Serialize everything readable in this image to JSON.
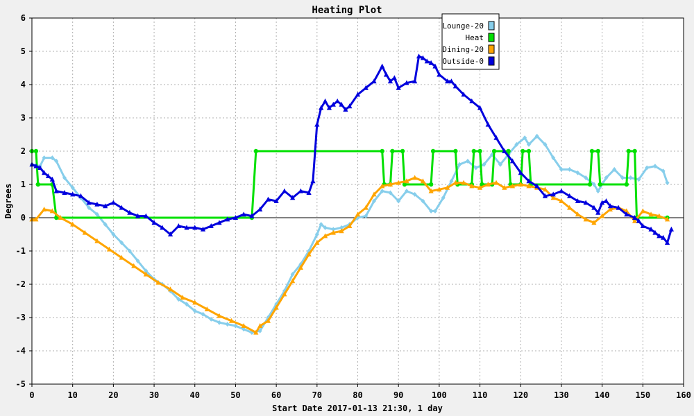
{
  "chart_data": {
    "type": "line",
    "title": "Heating Plot",
    "xlabel": "Start Date 2017-01-13 21:30, 1 day",
    "ylabel": "Degrees",
    "xlim": [
      0,
      160
    ],
    "ylim": [
      -5,
      6
    ],
    "x_ticks": [
      0,
      10,
      20,
      30,
      40,
      50,
      60,
      70,
      80,
      90,
      100,
      110,
      120,
      130,
      140,
      150,
      160
    ],
    "y_ticks": [
      -5,
      -4,
      -3,
      -2,
      -1,
      0,
      1,
      2,
      3,
      4,
      5,
      6
    ],
    "grid": true,
    "legend_position": "top-right",
    "series": [
      {
        "name": "Lounge-20",
        "color": "#87ceeb",
        "marker": "diamond",
        "points": [
          [
            0,
            1.6
          ],
          [
            2,
            1.55
          ],
          [
            3,
            1.8
          ],
          [
            5,
            1.8
          ],
          [
            6,
            1.7
          ],
          [
            8,
            1.2
          ],
          [
            10,
            0.9
          ],
          [
            12,
            0.6
          ],
          [
            14,
            0.3
          ],
          [
            16,
            0.1
          ],
          [
            18,
            -0.2
          ],
          [
            20,
            -0.5
          ],
          [
            22,
            -0.75
          ],
          [
            24,
            -1.0
          ],
          [
            26,
            -1.3
          ],
          [
            28,
            -1.6
          ],
          [
            30,
            -1.85
          ],
          [
            32,
            -2.0
          ],
          [
            34,
            -2.2
          ],
          [
            36,
            -2.45
          ],
          [
            38,
            -2.6
          ],
          [
            40,
            -2.8
          ],
          [
            42,
            -2.9
          ],
          [
            44,
            -3.05
          ],
          [
            46,
            -3.15
          ],
          [
            48,
            -3.2
          ],
          [
            50,
            -3.25
          ],
          [
            52,
            -3.35
          ],
          [
            54,
            -3.45
          ],
          [
            56,
            -3.4
          ],
          [
            58,
            -3.0
          ],
          [
            60,
            -2.6
          ],
          [
            62,
            -2.2
          ],
          [
            64,
            -1.7
          ],
          [
            66,
            -1.4
          ],
          [
            68,
            -1.0
          ],
          [
            70,
            -0.5
          ],
          [
            71,
            -0.2
          ],
          [
            72,
            -0.3
          ],
          [
            74,
            -0.35
          ],
          [
            76,
            -0.3
          ],
          [
            78,
            -0.2
          ],
          [
            80,
            0.0
          ],
          [
            82,
            0.05
          ],
          [
            84,
            0.5
          ],
          [
            86,
            0.8
          ],
          [
            88,
            0.75
          ],
          [
            90,
            0.5
          ],
          [
            92,
            0.8
          ],
          [
            94,
            0.7
          ],
          [
            96,
            0.5
          ],
          [
            98,
            0.2
          ],
          [
            99,
            0.2
          ],
          [
            101,
            0.6
          ],
          [
            103,
            1.1
          ],
          [
            105,
            1.6
          ],
          [
            107,
            1.7
          ],
          [
            109,
            1.5
          ],
          [
            111,
            1.6
          ],
          [
            113,
            1.9
          ],
          [
            115,
            1.6
          ],
          [
            117,
            1.9
          ],
          [
            119,
            2.2
          ],
          [
            121,
            2.4
          ],
          [
            122,
            2.2
          ],
          [
            124,
            2.45
          ],
          [
            126,
            2.2
          ],
          [
            128,
            1.8
          ],
          [
            130,
            1.45
          ],
          [
            132,
            1.45
          ],
          [
            134,
            1.35
          ],
          [
            136,
            1.2
          ],
          [
            138,
            1.0
          ],
          [
            139,
            0.8
          ],
          [
            141,
            1.2
          ],
          [
            143,
            1.45
          ],
          [
            145,
            1.2
          ],
          [
            147,
            1.2
          ],
          [
            149,
            1.15
          ],
          [
            151,
            1.5
          ],
          [
            153,
            1.55
          ],
          [
            155,
            1.4
          ],
          [
            156,
            1.05
          ]
        ]
      },
      {
        "name": "Heat",
        "color": "#00e000",
        "marker": "circle",
        "points": [
          [
            0,
            2
          ],
          [
            1,
            2
          ],
          [
            1.5,
            1
          ],
          [
            5,
            1
          ],
          [
            6,
            0
          ],
          [
            54,
            0
          ],
          [
            55,
            2
          ],
          [
            86,
            2
          ],
          [
            86.5,
            1
          ],
          [
            88,
            1
          ],
          [
            88.5,
            2
          ],
          [
            91,
            2
          ],
          [
            91.5,
            1
          ],
          [
            98,
            1
          ],
          [
            98.5,
            2
          ],
          [
            104,
            2
          ],
          [
            104.5,
            1
          ],
          [
            108,
            1
          ],
          [
            108.5,
            2
          ],
          [
            110,
            2
          ],
          [
            110.5,
            1
          ],
          [
            113,
            1
          ],
          [
            113.5,
            2
          ],
          [
            117,
            2
          ],
          [
            117.5,
            1
          ],
          [
            120,
            1
          ],
          [
            120.5,
            2
          ],
          [
            122,
            2
          ],
          [
            122.5,
            1
          ],
          [
            137,
            1
          ],
          [
            137.5,
            2
          ],
          [
            139,
            2
          ],
          [
            139.5,
            1
          ],
          [
            146,
            1
          ],
          [
            146.5,
            2
          ],
          [
            148,
            2
          ],
          [
            148.5,
            0
          ],
          [
            156,
            0
          ]
        ]
      },
      {
        "name": "Dining-20",
        "color": "#ffa500",
        "marker": "triangle",
        "points": [
          [
            0,
            -0.05
          ],
          [
            1,
            -0.05
          ],
          [
            3,
            0.25
          ],
          [
            5,
            0.2
          ],
          [
            7,
            0.0
          ],
          [
            10,
            -0.2
          ],
          [
            13,
            -0.45
          ],
          [
            16,
            -0.7
          ],
          [
            19,
            -0.95
          ],
          [
            22,
            -1.2
          ],
          [
            25,
            -1.45
          ],
          [
            28,
            -1.7
          ],
          [
            31,
            -1.95
          ],
          [
            34,
            -2.15
          ],
          [
            37,
            -2.4
          ],
          [
            40,
            -2.55
          ],
          [
            43,
            -2.75
          ],
          [
            46,
            -2.95
          ],
          [
            49,
            -3.1
          ],
          [
            52,
            -3.25
          ],
          [
            55,
            -3.45
          ],
          [
            56,
            -3.25
          ],
          [
            58,
            -3.1
          ],
          [
            60,
            -2.7
          ],
          [
            62,
            -2.3
          ],
          [
            64,
            -1.9
          ],
          [
            66,
            -1.5
          ],
          [
            68,
            -1.1
          ],
          [
            70,
            -0.75
          ],
          [
            72,
            -0.55
          ],
          [
            74,
            -0.45
          ],
          [
            76,
            -0.4
          ],
          [
            78,
            -0.25
          ],
          [
            80,
            0.1
          ],
          [
            82,
            0.3
          ],
          [
            84,
            0.7
          ],
          [
            86,
            0.95
          ],
          [
            88,
            1.0
          ],
          [
            90,
            1.05
          ],
          [
            92,
            1.1
          ],
          [
            94,
            1.2
          ],
          [
            96,
            1.1
          ],
          [
            98,
            0.8
          ],
          [
            100,
            0.85
          ],
          [
            102,
            0.9
          ],
          [
            104,
            1.05
          ],
          [
            106,
            1.05
          ],
          [
            108,
            0.95
          ],
          [
            110,
            0.9
          ],
          [
            112,
            1.0
          ],
          [
            114,
            1.05
          ],
          [
            116,
            0.9
          ],
          [
            118,
            0.95
          ],
          [
            120,
            1.0
          ],
          [
            122,
            0.95
          ],
          [
            124,
            0.9
          ],
          [
            126,
            0.85
          ],
          [
            128,
            0.6
          ],
          [
            130,
            0.5
          ],
          [
            132,
            0.3
          ],
          [
            134,
            0.1
          ],
          [
            136,
            -0.05
          ],
          [
            138,
            -0.15
          ],
          [
            140,
            0.05
          ],
          [
            142,
            0.25
          ],
          [
            144,
            0.3
          ],
          [
            146,
            0.2
          ],
          [
            148,
            -0.1
          ],
          [
            150,
            0.2
          ],
          [
            152,
            0.1
          ],
          [
            154,
            0.05
          ],
          [
            156,
            -0.05
          ]
        ]
      },
      {
        "name": "Outside-0",
        "color": "#0000dd",
        "marker": "triangle",
        "points": [
          [
            0,
            1.6
          ],
          [
            1,
            1.55
          ],
          [
            2,
            1.5
          ],
          [
            3,
            1.35
          ],
          [
            4,
            1.25
          ],
          [
            5,
            1.15
          ],
          [
            6,
            0.8
          ],
          [
            8,
            0.75
          ],
          [
            10,
            0.7
          ],
          [
            12,
            0.65
          ],
          [
            14,
            0.45
          ],
          [
            16,
            0.4
          ],
          [
            18,
            0.35
          ],
          [
            20,
            0.45
          ],
          [
            22,
            0.3
          ],
          [
            24,
            0.15
          ],
          [
            26,
            0.05
          ],
          [
            28,
            0.05
          ],
          [
            30,
            -0.15
          ],
          [
            32,
            -0.3
          ],
          [
            34,
            -0.5
          ],
          [
            36,
            -0.25
          ],
          [
            38,
            -0.3
          ],
          [
            40,
            -0.3
          ],
          [
            42,
            -0.35
          ],
          [
            44,
            -0.25
          ],
          [
            46,
            -0.15
          ],
          [
            48,
            -0.05
          ],
          [
            50,
            0.0
          ],
          [
            52,
            0.1
          ],
          [
            54,
            0.05
          ],
          [
            56,
            0.25
          ],
          [
            58,
            0.55
          ],
          [
            60,
            0.5
          ],
          [
            62,
            0.8
          ],
          [
            64,
            0.6
          ],
          [
            66,
            0.8
          ],
          [
            68,
            0.75
          ],
          [
            69,
            1.1
          ],
          [
            70,
            2.8
          ],
          [
            71,
            3.3
          ],
          [
            72,
            3.5
          ],
          [
            73,
            3.3
          ],
          [
            74,
            3.4
          ],
          [
            75,
            3.5
          ],
          [
            76,
            3.4
          ],
          [
            77,
            3.25
          ],
          [
            78,
            3.35
          ],
          [
            80,
            3.7
          ],
          [
            82,
            3.9
          ],
          [
            84,
            4.1
          ],
          [
            86,
            4.55
          ],
          [
            87,
            4.3
          ],
          [
            88,
            4.1
          ],
          [
            89,
            4.2
          ],
          [
            90,
            3.9
          ],
          [
            92,
            4.05
          ],
          [
            94,
            4.1
          ],
          [
            95,
            4.85
          ],
          [
            96,
            4.8
          ],
          [
            97,
            4.7
          ],
          [
            98,
            4.65
          ],
          [
            99,
            4.55
          ],
          [
            100,
            4.3
          ],
          [
            102,
            4.1
          ],
          [
            103,
            4.1
          ],
          [
            104,
            3.95
          ],
          [
            106,
            3.7
          ],
          [
            108,
            3.5
          ],
          [
            110,
            3.3
          ],
          [
            112,
            2.8
          ],
          [
            114,
            2.4
          ],
          [
            116,
            2.0
          ],
          [
            118,
            1.7
          ],
          [
            120,
            1.35
          ],
          [
            122,
            1.1
          ],
          [
            124,
            0.95
          ],
          [
            126,
            0.65
          ],
          [
            128,
            0.7
          ],
          [
            130,
            0.8
          ],
          [
            132,
            0.65
          ],
          [
            134,
            0.5
          ],
          [
            136,
            0.45
          ],
          [
            138,
            0.3
          ],
          [
            139,
            0.15
          ],
          [
            140,
            0.45
          ],
          [
            141,
            0.5
          ],
          [
            142,
            0.35
          ],
          [
            144,
            0.3
          ],
          [
            146,
            0.1
          ],
          [
            148,
            0.0
          ],
          [
            149,
            -0.1
          ],
          [
            150,
            -0.25
          ],
          [
            152,
            -0.35
          ],
          [
            153,
            -0.45
          ],
          [
            154,
            -0.55
          ],
          [
            155,
            -0.6
          ],
          [
            156,
            -0.75
          ],
          [
            157,
            -0.35
          ]
        ]
      }
    ]
  }
}
